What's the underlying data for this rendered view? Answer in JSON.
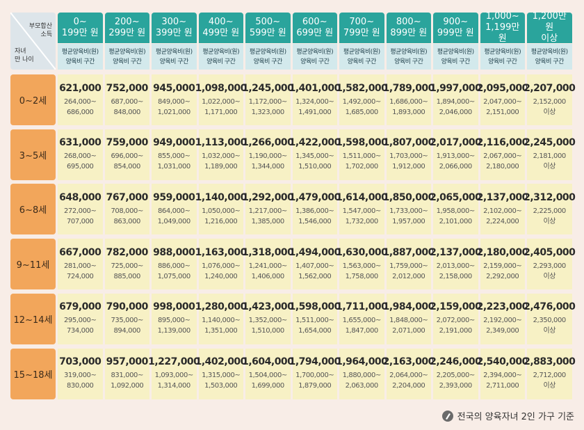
{
  "corner": {
    "top": [
      "부모합산",
      "소득"
    ],
    "bottom": [
      "자녀",
      "만 나이"
    ]
  },
  "columns": [
    {
      "lines": [
        "0~",
        "199만 원"
      ],
      "sub": [
        "평균양육비(원)",
        "양육비 구간"
      ]
    },
    {
      "lines": [
        "200~",
        "299만 원"
      ],
      "sub": [
        "평균양육비(원)",
        "양육비 구간"
      ]
    },
    {
      "lines": [
        "300~",
        "399만 원"
      ],
      "sub": [
        "평균양육비(원)",
        "양육비 구간"
      ]
    },
    {
      "lines": [
        "400~",
        "499만 원"
      ],
      "sub": [
        "평균양육비(원)",
        "양육비 구간"
      ]
    },
    {
      "lines": [
        "500~",
        "599만 원"
      ],
      "sub": [
        "평균양육비(원)",
        "양육비 구간"
      ]
    },
    {
      "lines": [
        "600~",
        "699만 원"
      ],
      "sub": [
        "평균양육비(원)",
        "양육비 구간"
      ]
    },
    {
      "lines": [
        "700~",
        "799만 원"
      ],
      "sub": [
        "평균양육비(원)",
        "양육비 구간"
      ]
    },
    {
      "lines": [
        "800~",
        "899만 원"
      ],
      "sub": [
        "평균양육비(원)",
        "양육비 구간"
      ]
    },
    {
      "lines": [
        "900~",
        "999만 원"
      ],
      "sub": [
        "평균양육비(원)",
        "양육비 구간"
      ]
    },
    {
      "lines": [
        "1,000~",
        "1,199만 원"
      ],
      "sub": [
        "평균양육비(원)",
        "양육비 구간"
      ]
    },
    {
      "lines": [
        "1,200만 원",
        "이상"
      ],
      "sub": [
        "평균양육비(원)",
        "양육비 구간"
      ]
    }
  ],
  "rows": [
    {
      "label": "0~2세",
      "cells": [
        [
          "621,000",
          "264,000~",
          "686,000"
        ],
        [
          "752,000",
          "687,000~",
          "848,000"
        ],
        [
          "945,000",
          "849,000~",
          "1,021,000"
        ],
        [
          "1,098,000",
          "1,022,000~",
          "1,171,000"
        ],
        [
          "1,245,000",
          "1,172,000~",
          "1,323,000"
        ],
        [
          "1,401,000",
          "1,324,000~",
          "1,491,000"
        ],
        [
          "1,582,000",
          "1,492,000~",
          "1,685,000"
        ],
        [
          "1,789,000",
          "1,686,000~",
          "1,893,000"
        ],
        [
          "1,997,000",
          "1,894,000~",
          "2,046,000"
        ],
        [
          "2,095,000",
          "2,047,000~",
          "2,151,000"
        ],
        [
          "2,207,000",
          "2,152,000",
          "이상"
        ]
      ]
    },
    {
      "label": "3~5세",
      "cells": [
        [
          "631,000",
          "268,000~",
          "695,000"
        ],
        [
          "759,000",
          "696,000~",
          "854,000"
        ],
        [
          "949,000",
          "855,000~",
          "1,031,000"
        ],
        [
          "1,113,000",
          "1,032,000~",
          "1,189,000"
        ],
        [
          "1,266,000",
          "1,190,000~",
          "1,344,000"
        ],
        [
          "1,422,000",
          "1,345,000~",
          "1,510,000"
        ],
        [
          "1,598,000",
          "1,511,000~",
          "1,702,000"
        ],
        [
          "1,807,000",
          "1,703,000~",
          "1,912,000"
        ],
        [
          "2,017,000",
          "1,913,000~",
          "2,066,000"
        ],
        [
          "2,116,000",
          "2,067,000~",
          "2,180,000"
        ],
        [
          "2,245,000",
          "2,181,000",
          "이상"
        ]
      ]
    },
    {
      "label": "6~8세",
      "cells": [
        [
          "648,000",
          "272,000~",
          "707,000"
        ],
        [
          "767,000",
          "708,000~",
          "863,000"
        ],
        [
          "959,000",
          "864,000~",
          "1,049,000"
        ],
        [
          "1,140,000",
          "1,050,000~",
          "1,216,000"
        ],
        [
          "1,292,000",
          "1,217,000~",
          "1,385,000"
        ],
        [
          "1,479,000",
          "1,386,000~",
          "1,546,000"
        ],
        [
          "1,614,000",
          "1,547,000~",
          "1,732,000"
        ],
        [
          "1,850,000",
          "1,733,000~",
          "1,957,000"
        ],
        [
          "2,065,000",
          "1,958,000~",
          "2,101,000"
        ],
        [
          "2,137,000",
          "2,102,000~",
          "2,224,000"
        ],
        [
          "2,312,000",
          "2,225,000",
          "이상"
        ]
      ]
    },
    {
      "label": "9~11세",
      "cells": [
        [
          "667,000",
          "281,000~",
          "724,000"
        ],
        [
          "782,000",
          "725,000~",
          "885,000"
        ],
        [
          "988,000",
          "886,000~",
          "1,075,000"
        ],
        [
          "1,163,000",
          "1,076,000~",
          "1,240,000"
        ],
        [
          "1,318,000",
          "1,241,000~",
          "1,406,000"
        ],
        [
          "1,494,000",
          "1,407,000~",
          "1,562,000"
        ],
        [
          "1,630,000",
          "1,563,000~",
          "1,758,000"
        ],
        [
          "1,887,000",
          "1,759,000~",
          "2,012,000"
        ],
        [
          "2,137,000",
          "2,013,000~",
          "2,158,000"
        ],
        [
          "2,180,000",
          "2,159,000~",
          "2,292,000"
        ],
        [
          "2,405,000",
          "2,293,000",
          "이상"
        ]
      ]
    },
    {
      "label": "12~14세",
      "cells": [
        [
          "679,000",
          "295,000~",
          "734,000"
        ],
        [
          "790,000",
          "735,000~",
          "894,000"
        ],
        [
          "998,000",
          "895,000~",
          "1,139,000"
        ],
        [
          "1,280,000",
          "1,140,000~",
          "1,351,000"
        ],
        [
          "1,423,000",
          "1,352,000~",
          "1,510,000"
        ],
        [
          "1,598,000",
          "1,511,000~",
          "1,654,000"
        ],
        [
          "1,711,000",
          "1,655,000~",
          "1,847,000"
        ],
        [
          "1,984,000",
          "1,848,000~",
          "2,071,000"
        ],
        [
          "2,159,000",
          "2,072,000~",
          "2,191,000"
        ],
        [
          "2,223,000",
          "2,192,000~",
          "2,349,000"
        ],
        [
          "2,476,000",
          "2,350,000",
          "이상"
        ]
      ]
    },
    {
      "label": "15~18세",
      "cells": [
        [
          "703,000",
          "319,000~",
          "830,000"
        ],
        [
          "957,000",
          "831,000~",
          "1,092,000"
        ],
        [
          "1,227,000",
          "1,093,000~",
          "1,314,000"
        ],
        [
          "1,402,000",
          "1,315,000~",
          "1,503,000"
        ],
        [
          "1,604,000",
          "1,504,000~",
          "1,699,000"
        ],
        [
          "1,794,000",
          "1,700,000~",
          "1,879,000"
        ],
        [
          "1,964,000",
          "1,880,000~",
          "2,063,000"
        ],
        [
          "2,163,000",
          "2,064,000~",
          "2,204,000"
        ],
        [
          "2,246,000",
          "2,205,000~",
          "2,393,000"
        ],
        [
          "2,540,000",
          "2,394,000~",
          "2,711,000"
        ],
        [
          "2,883,000",
          "2,712,000",
          "이상"
        ]
      ]
    }
  ],
  "footer": "전국의 양육자녀 2인 가구 기준"
}
